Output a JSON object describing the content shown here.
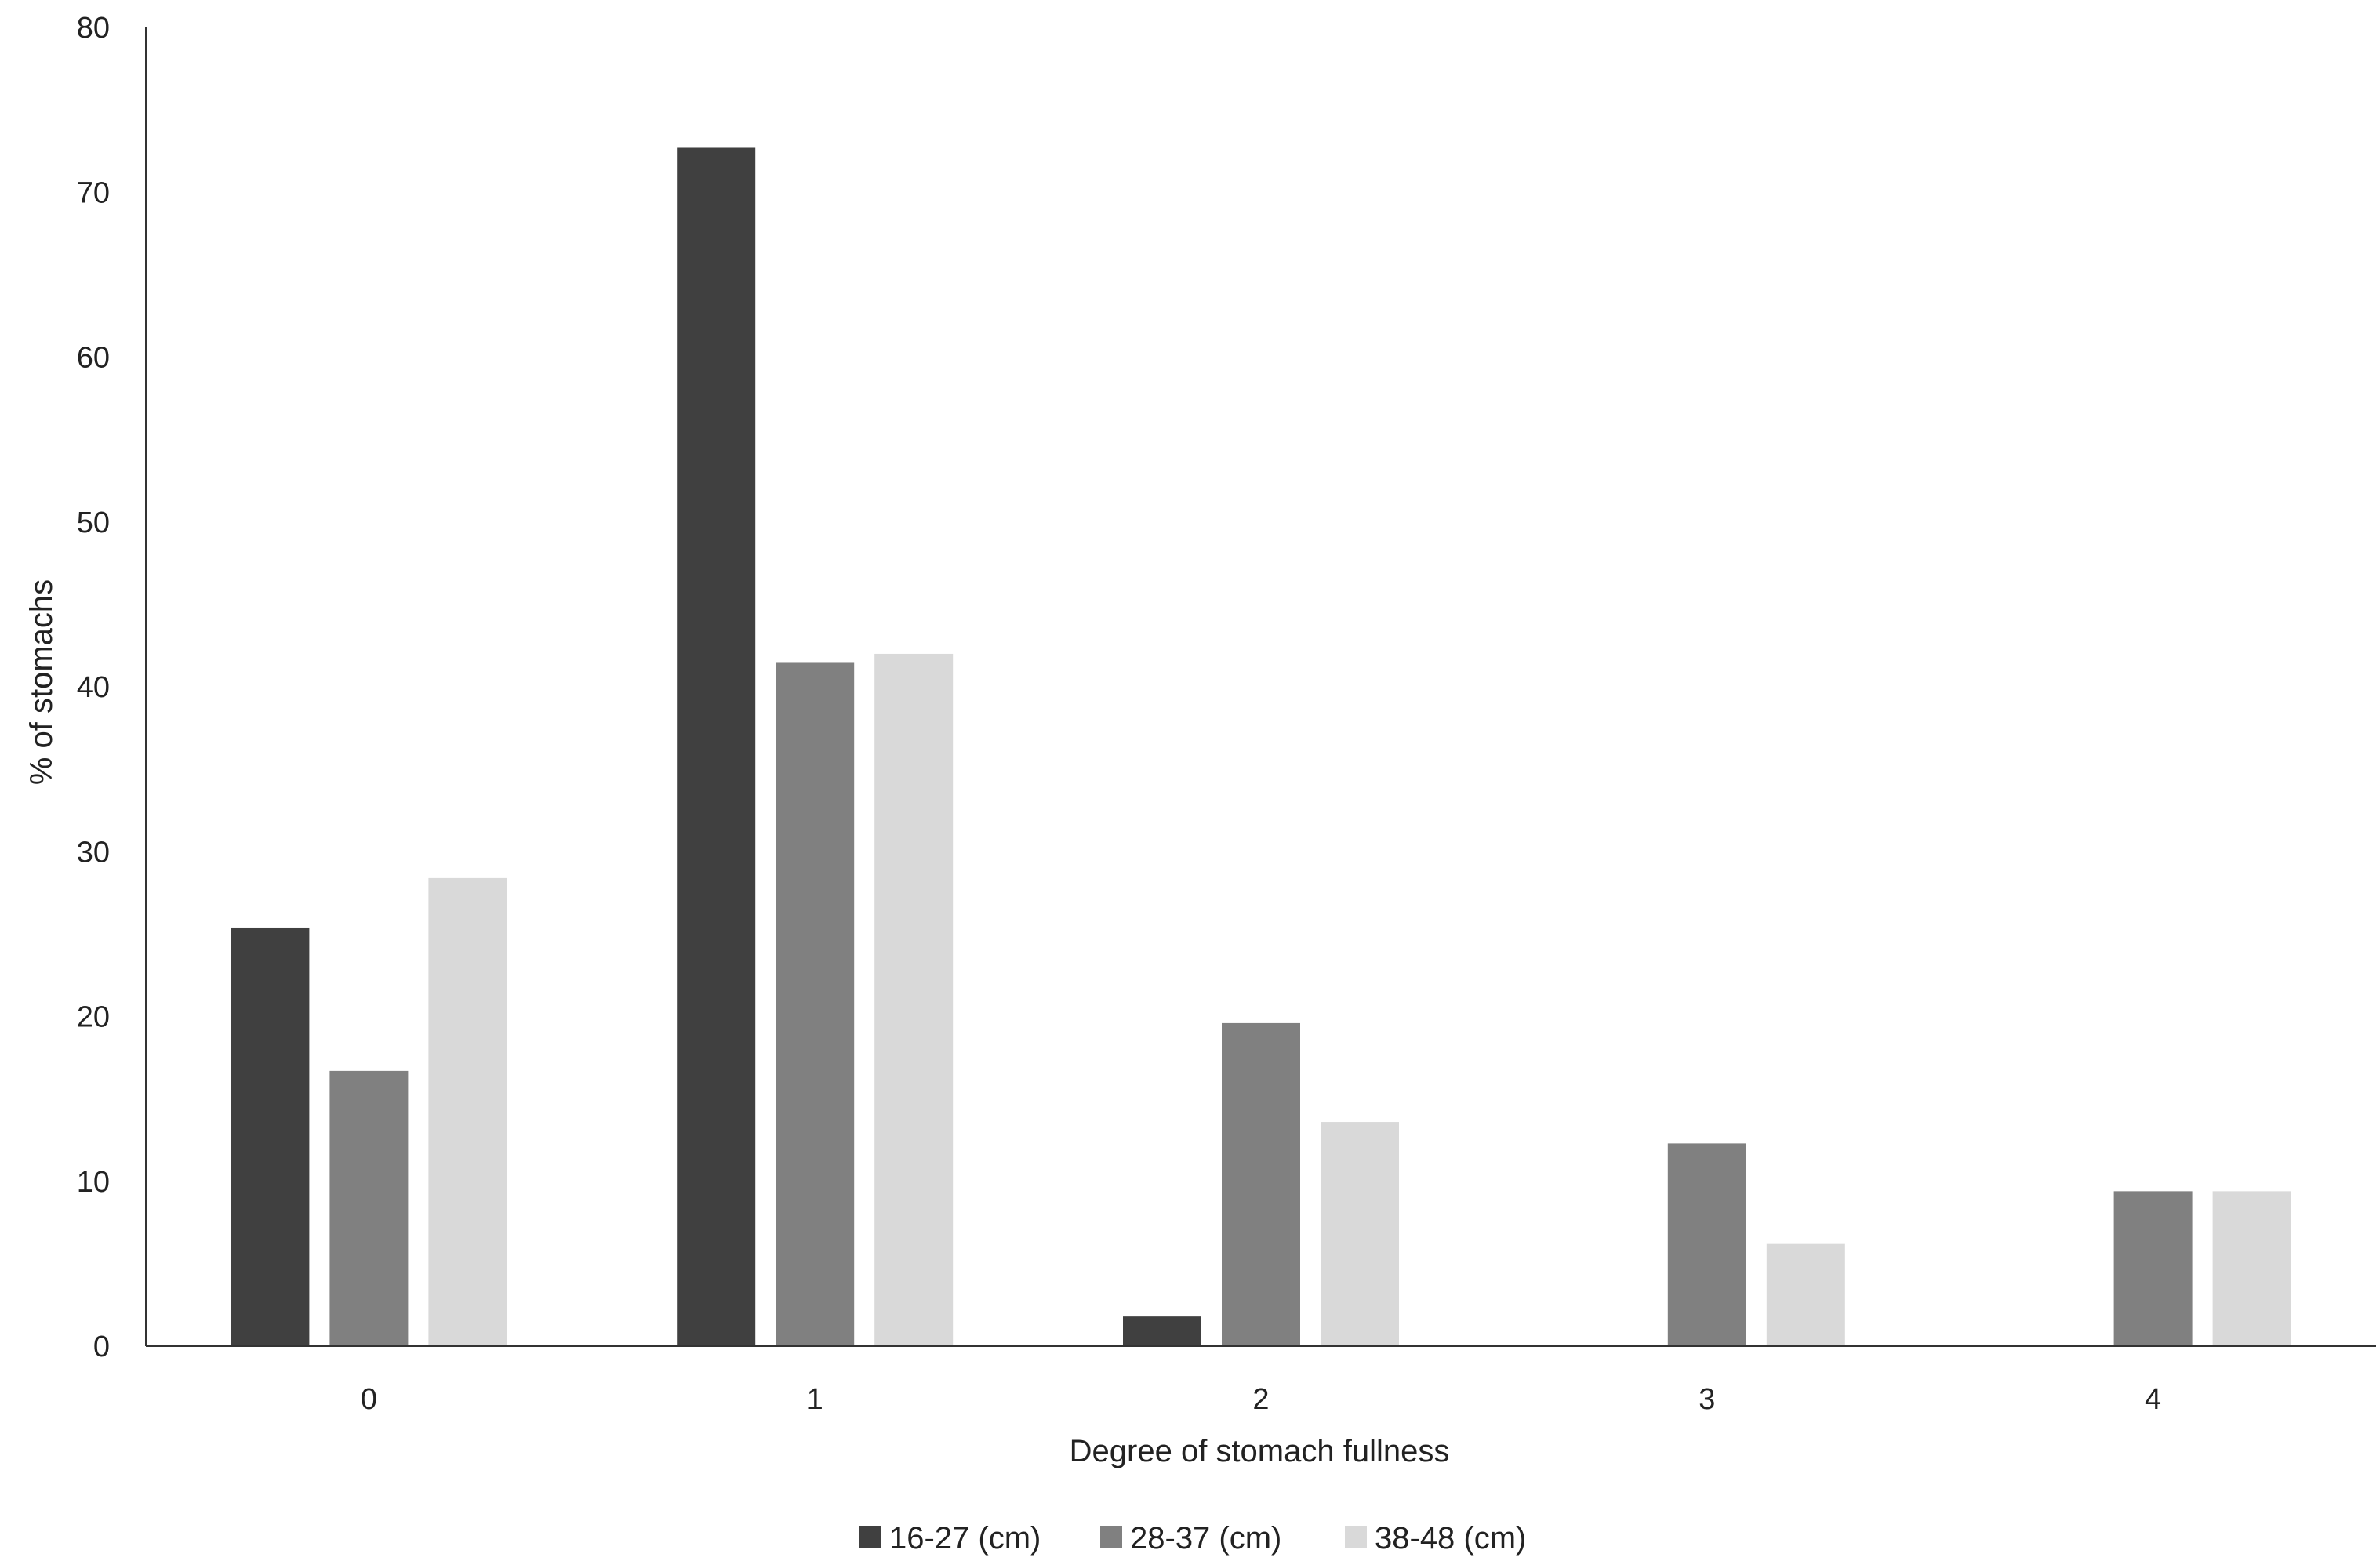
{
  "chart_data": {
    "type": "bar",
    "title": "",
    "xlabel": "Degree of stomach fullness",
    "ylabel": "% of stomachs",
    "categories": [
      "0",
      "1",
      "2",
      "3",
      "4"
    ],
    "series": [
      {
        "name": "16-27 (cm)",
        "values": [
          25.4,
          72.7,
          1.8,
          0,
          0
        ]
      },
      {
        "name": "28-37 (cm)",
        "values": [
          16.7,
          41.5,
          19.6,
          12.3,
          9.4
        ]
      },
      {
        "name": "38-48 (cm)",
        "values": [
          28.4,
          42.0,
          13.6,
          6.2,
          9.4
        ]
      }
    ],
    "ylim": [
      0,
      80
    ],
    "yticks": [
      "0",
      "10",
      "20",
      "30",
      "40",
      "50",
      "60",
      "70",
      "80"
    ],
    "grid": false,
    "legend_position": "bottom",
    "colors": [
      "#404040",
      "#808080",
      "#d9d9d9"
    ]
  }
}
